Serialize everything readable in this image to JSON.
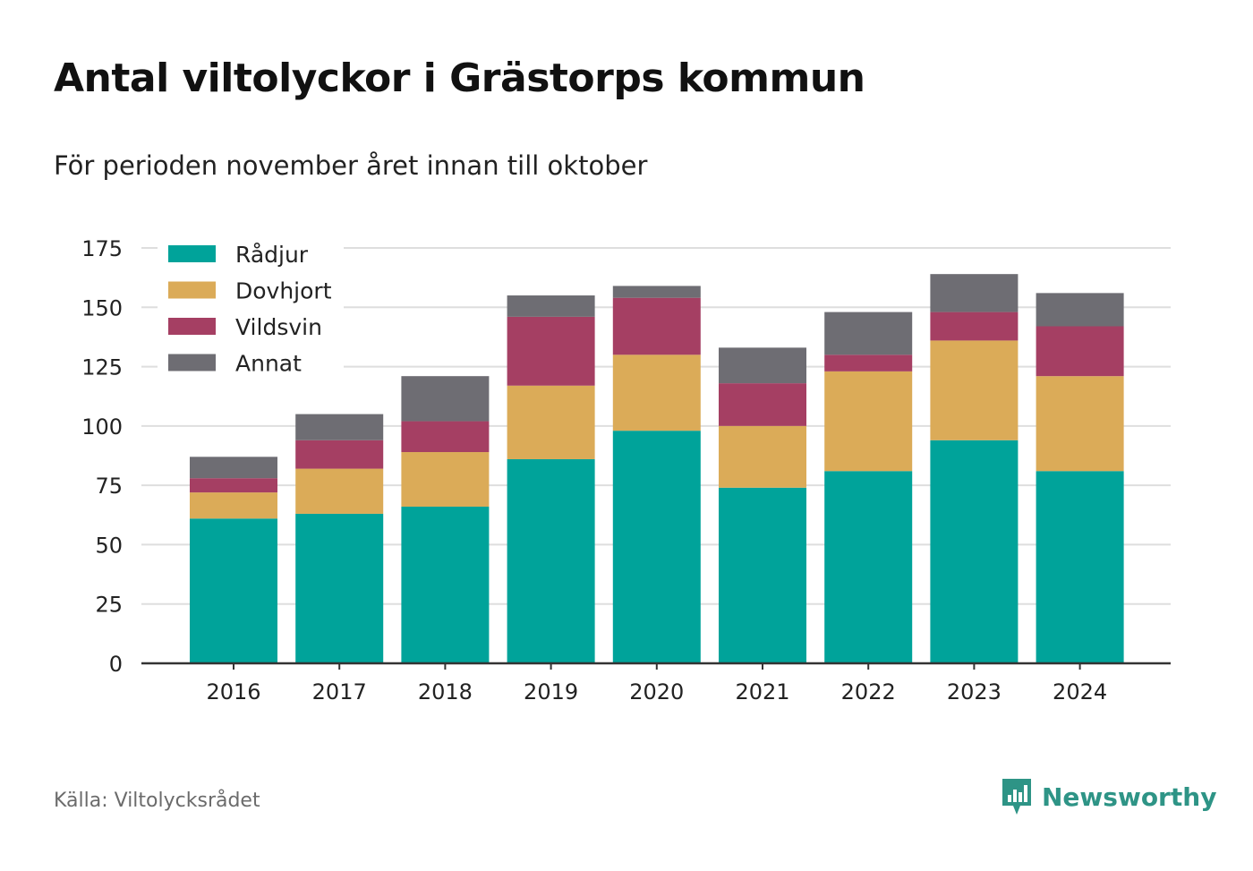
{
  "title": "Antal viltolyckor i Grästorps kommun",
  "subtitle": "För perioden november året innan till oktober",
  "source": "Källa: Viltolycksrådet",
  "brand": {
    "name": "Newsworthy",
    "icon": "newsworthy-chart-icon",
    "color": "#2e9486"
  },
  "chart_data": {
    "type": "bar",
    "stacked": true,
    "categories": [
      "2016",
      "2017",
      "2018",
      "2019",
      "2020",
      "2021",
      "2022",
      "2023",
      "2024"
    ],
    "series": [
      {
        "name": "Rådjur",
        "color": "#00a39a",
        "values": [
          61,
          63,
          66,
          86,
          98,
          74,
          81,
          94,
          81
        ]
      },
      {
        "name": "Dovhjort",
        "color": "#dbab58",
        "values": [
          11,
          19,
          23,
          31,
          32,
          26,
          42,
          42,
          40
        ]
      },
      {
        "name": "Vildsvin",
        "color": "#a53f63",
        "values": [
          6,
          12,
          13,
          29,
          24,
          18,
          7,
          12,
          21
        ]
      },
      {
        "name": "Annat",
        "color": "#6e6d73",
        "values": [
          9,
          11,
          19,
          9,
          5,
          15,
          18,
          16,
          14
        ]
      }
    ],
    "ylim": [
      0,
      175
    ],
    "yticks": [
      0,
      25,
      50,
      75,
      100,
      125,
      150,
      175
    ],
    "grid": true,
    "legend": "top-left",
    "xlabel": "",
    "ylabel": ""
  }
}
